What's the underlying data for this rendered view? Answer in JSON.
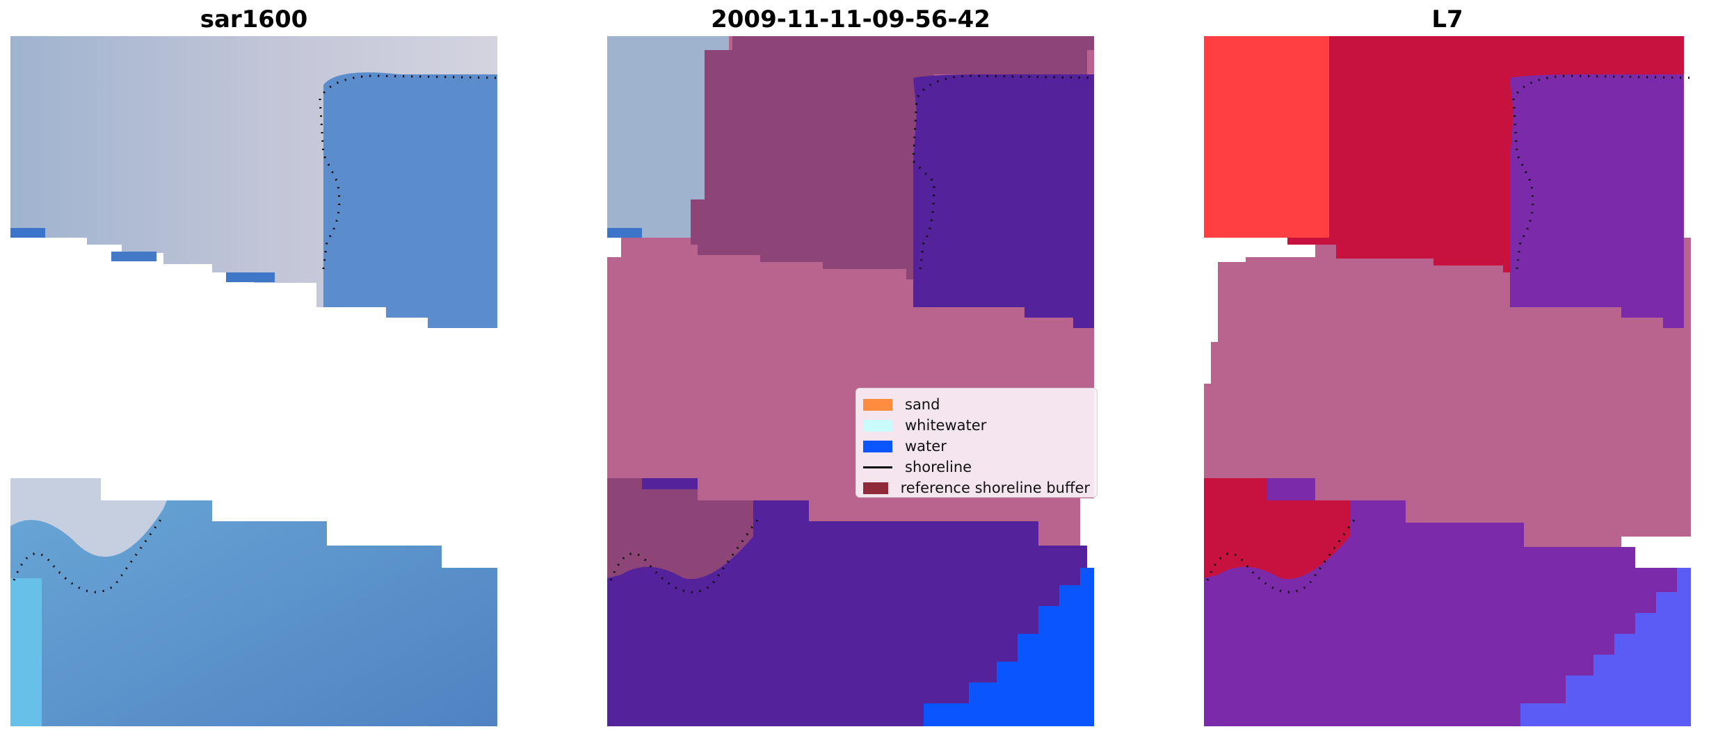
{
  "panels": [
    {
      "title": "sar1600"
    },
    {
      "title": "2009-11-11-09-56-42"
    },
    {
      "title": "L7"
    }
  ],
  "legend": {
    "items": [
      {
        "label": "sand",
        "color": "#ff8c3f",
        "kind": "patch"
      },
      {
        "label": "whitewater",
        "color": "#c8fbfa",
        "kind": "patch"
      },
      {
        "label": "water",
        "color": "#0b55ff",
        "kind": "patch"
      },
      {
        "label": "shoreline",
        "color": "#000000",
        "kind": "line"
      },
      {
        "label": "reference shoreline buffer",
        "color": "#8f2a3a",
        "kind": "patch"
      }
    ]
  },
  "colors": {
    "rgb_blue": "#5c8cc4",
    "rgb_light": "#b9c6da",
    "buffer_pink": "#b9638f",
    "water_overlay": "#54229a",
    "sand_overlay": "#8d4476",
    "water_class": "#0b55ff",
    "mndwi_red": "#c7123f",
    "mndwi_bright_red": "#ff3f41",
    "mndwi_purple": "#7b2aaa",
    "mndwi_blue": "#5a5cf5"
  }
}
